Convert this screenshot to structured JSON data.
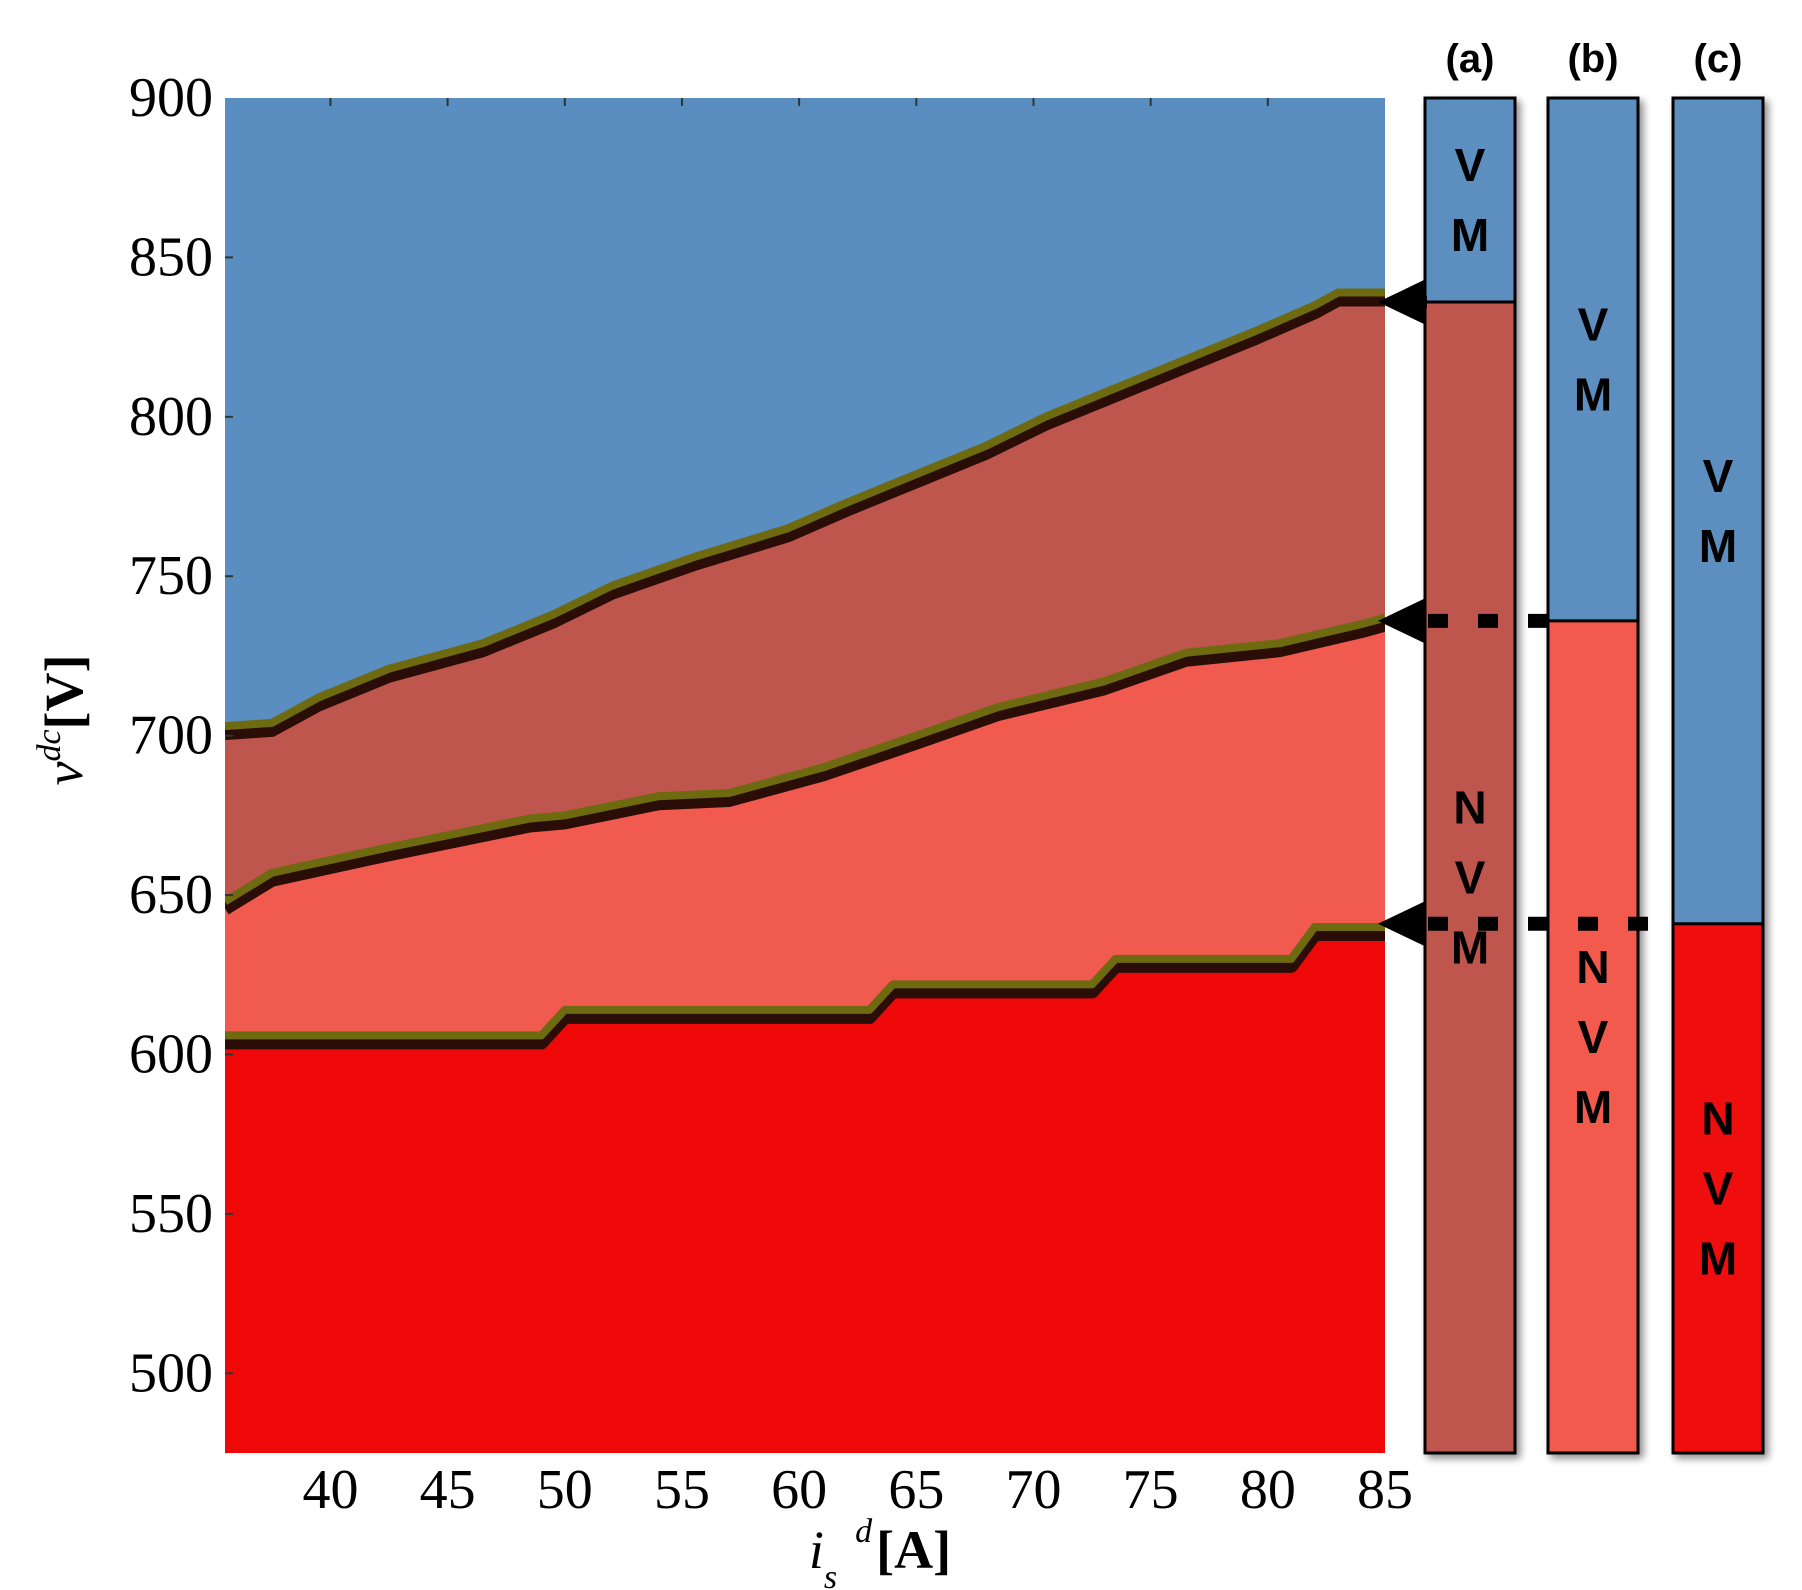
{
  "colors": {
    "vm": "#5b8ec0",
    "nvm_a": "#bf564d",
    "nvm_b": "#f15a4e",
    "nvm_c": "#ef0808",
    "edge_light": "#6e6a10",
    "edge_dark": "#2a0d06"
  },
  "chart_data": {
    "type": "area",
    "xlabel": {
      "var": "i",
      "sub": "s",
      "sup": "d",
      "unit": "[A]"
    },
    "ylabel": {
      "var": "v",
      "sup": "dc",
      "unit": "[V]"
    },
    "xlim": [
      35.5,
      85
    ],
    "ylim": [
      475,
      900
    ],
    "xticks": [
      "40",
      "45",
      "50",
      "55",
      "60",
      "65",
      "70",
      "75",
      "80",
      "85"
    ],
    "xtick_values": [
      40,
      45,
      50,
      55,
      60,
      65,
      70,
      75,
      80,
      85
    ],
    "yticks": [
      "900",
      "850",
      "800",
      "750",
      "700",
      "650",
      "600",
      "550",
      "500"
    ],
    "ytick_values": [
      900,
      850,
      800,
      750,
      700,
      650,
      600,
      550,
      500
    ],
    "regions": [
      {
        "name": "VM",
        "color_key": "vm"
      },
      {
        "name": "NVM (a)",
        "color_key": "nvm_a"
      },
      {
        "name": "NVM (b)",
        "color_key": "nvm_b"
      },
      {
        "name": "NVM (c)",
        "color_key": "nvm_c"
      }
    ],
    "boundaries": [
      {
        "name": "(a)",
        "x": [
          35.5,
          37.5,
          39.5,
          42.5,
          46.5,
          49.5,
          52,
          55.5,
          59.5,
          62,
          65,
          68,
          70.5,
          73.5,
          76.5,
          79.5,
          82,
          83,
          85
        ],
        "y": [
          703,
          704,
          712,
          721,
          729,
          738,
          747,
          756,
          765,
          773,
          782,
          791,
          800,
          809,
          818,
          827,
          835,
          839,
          839
        ]
      },
      {
        "name": "(b)",
        "x": [
          35.5,
          37.5,
          42.5,
          48.5,
          50,
          54,
          57,
          61,
          65,
          68.5,
          73,
          76.5,
          80.5,
          84,
          85
        ],
        "y": [
          648,
          657,
          665,
          674,
          675,
          681,
          682,
          690,
          700,
          709,
          717,
          726,
          729,
          735,
          737
        ]
      },
      {
        "name": "(c)",
        "x": [
          35.5,
          49,
          50,
          63,
          64,
          72.5,
          73.5,
          81,
          82,
          85
        ],
        "y": [
          606,
          606,
          614,
          614,
          622,
          622,
          630,
          630,
          640,
          640
        ]
      }
    ]
  },
  "panels": [
    {
      "label": "(a)",
      "threshold": 836,
      "upper_text": [
        "V",
        "M"
      ],
      "lower_text": [
        "N",
        "V",
        "M"
      ],
      "lower_color_key": "nvm_a"
    },
    {
      "label": "(b)",
      "threshold": 736,
      "upper_text": [
        "V",
        "M"
      ],
      "lower_text": [
        "N",
        "V",
        "M"
      ],
      "lower_color_key": "nvm_b"
    },
    {
      "label": "(c)",
      "threshold": 641,
      "upper_text": [
        "V",
        "M"
      ],
      "lower_text": [
        "N",
        "V",
        "M"
      ],
      "lower_color_key": "nvm_c"
    }
  ]
}
